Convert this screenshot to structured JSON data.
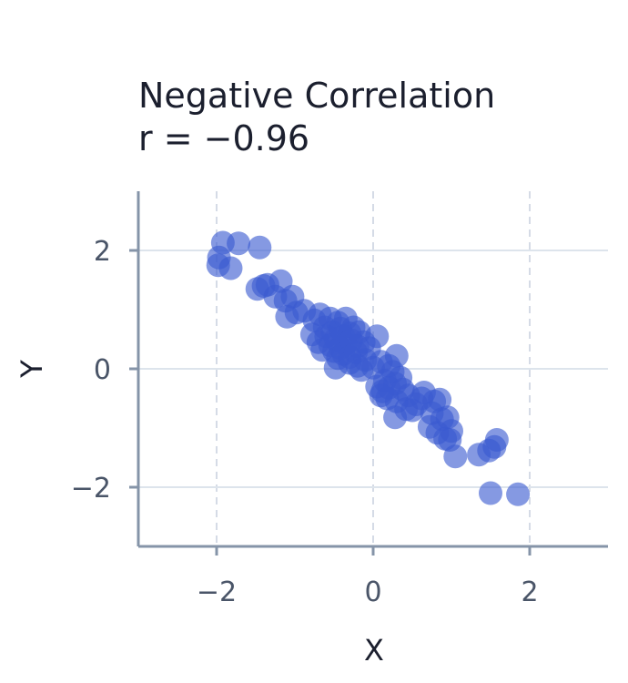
{
  "chart_data": {
    "type": "scatter",
    "title": "Negative Correlation",
    "subtitle": "r = −0.96",
    "xlabel": "X",
    "ylabel": "Y",
    "xlim": [
      -3,
      3
    ],
    "ylim": [
      -3,
      3
    ],
    "xticks": [
      -2,
      0,
      2
    ],
    "xtick_labels": [
      "−2",
      "0",
      "2"
    ],
    "yticks": [
      -2,
      0,
      2
    ],
    "ytick_labels": [
      "−2",
      "0",
      "2"
    ],
    "grid": true,
    "point_color": "#3a5bd0",
    "points": [
      [
        -1.92,
        2.13
      ],
      [
        -1.72,
        2.12
      ],
      [
        -1.45,
        2.05
      ],
      [
        -1.97,
        1.88
      ],
      [
        -1.98,
        1.75
      ],
      [
        -1.82,
        1.7
      ],
      [
        -1.48,
        1.35
      ],
      [
        -1.4,
        1.4
      ],
      [
        -1.35,
        1.42
      ],
      [
        -1.18,
        1.48
      ],
      [
        -1.25,
        1.22
      ],
      [
        -1.12,
        1.15
      ],
      [
        -1.03,
        1.22
      ],
      [
        -0.98,
        0.95
      ],
      [
        -1.1,
        0.88
      ],
      [
        -0.88,
        0.98
      ],
      [
        -0.75,
        0.82
      ],
      [
        -0.68,
        0.92
      ],
      [
        -0.62,
        0.7
      ],
      [
        -0.55,
        0.85
      ],
      [
        -0.45,
        0.78
      ],
      [
        -0.35,
        0.85
      ],
      [
        -0.78,
        0.58
      ],
      [
        -0.7,
        0.45
      ],
      [
        -0.6,
        0.55
      ],
      [
        -0.52,
        0.62
      ],
      [
        -0.48,
        0.5
      ],
      [
        -0.42,
        0.68
      ],
      [
        -0.38,
        0.55
      ],
      [
        -0.3,
        0.6
      ],
      [
        -0.25,
        0.7
      ],
      [
        -0.18,
        0.62
      ],
      [
        -0.55,
        0.4
      ],
      [
        -0.5,
        0.3
      ],
      [
        -0.42,
        0.35
      ],
      [
        -0.35,
        0.42
      ],
      [
        -0.28,
        0.48
      ],
      [
        -0.2,
        0.38
      ],
      [
        -0.65,
        0.32
      ],
      [
        -0.45,
        0.18
      ],
      [
        -0.38,
        0.25
      ],
      [
        -0.3,
        0.2
      ],
      [
        -0.22,
        0.28
      ],
      [
        -0.12,
        0.45
      ],
      [
        -0.05,
        0.35
      ],
      [
        0.05,
        0.55
      ],
      [
        -0.48,
        0.02
      ],
      [
        -0.3,
        0.1
      ],
      [
        -0.2,
        0.05
      ],
      [
        -0.1,
        0.15
      ],
      [
        -0.15,
        -0.02
      ],
      [
        0.0,
        0.02
      ],
      [
        0.1,
        0.12
      ],
      [
        0.2,
        0.05
      ],
      [
        0.3,
        0.22
      ],
      [
        0.25,
        -0.05
      ],
      [
        0.35,
        -0.15
      ],
      [
        0.15,
        -0.2
      ],
      [
        0.05,
        -0.3
      ],
      [
        0.12,
        -0.38
      ],
      [
        0.2,
        -0.32
      ],
      [
        0.28,
        -0.25
      ],
      [
        0.38,
        -0.35
      ],
      [
        0.45,
        -0.45
      ],
      [
        0.3,
        -0.55
      ],
      [
        0.18,
        -0.5
      ],
      [
        0.1,
        -0.45
      ],
      [
        0.55,
        -0.6
      ],
      [
        0.5,
        -0.7
      ],
      [
        0.62,
        -0.5
      ],
      [
        0.65,
        -0.4
      ],
      [
        0.42,
        -0.68
      ],
      [
        0.28,
        -0.82
      ],
      [
        0.78,
        -0.55
      ],
      [
        0.85,
        -0.52
      ],
      [
        0.75,
        -0.75
      ],
      [
        0.72,
        -0.98
      ],
      [
        0.88,
        -0.85
      ],
      [
        0.95,
        -0.82
      ],
      [
        0.82,
        -1.08
      ],
      [
        0.92,
        -1.18
      ],
      [
        1.0,
        -1.05
      ],
      [
        0.98,
        -1.2
      ],
      [
        1.05,
        -1.48
      ],
      [
        1.35,
        -1.45
      ],
      [
        1.48,
        -1.38
      ],
      [
        1.55,
        -1.32
      ],
      [
        1.58,
        -1.2
      ],
      [
        1.5,
        -2.1
      ],
      [
        1.85,
        -2.12
      ]
    ]
  }
}
